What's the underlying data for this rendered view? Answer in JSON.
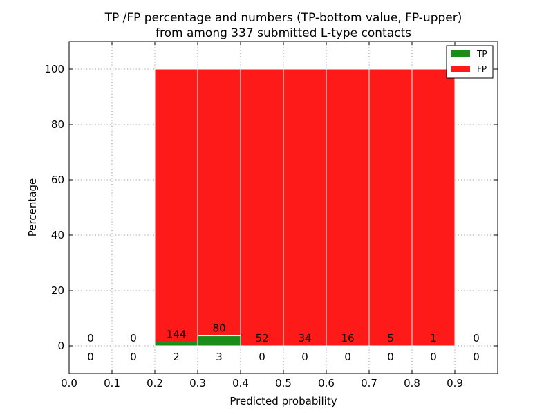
{
  "chart_data": {
    "type": "bar",
    "title": [
      "TP /FP percentage and numbers (TP-bottom value, FP-upper)",
      "from among 337 submitted L-type contacts"
    ],
    "xlabel": "Predicted probability",
    "ylabel": "Percentage",
    "xlim": [
      0.0,
      1.0
    ],
    "ylim": [
      -10,
      110
    ],
    "xticks": [
      "0.0",
      "0.1",
      "0.2",
      "0.3",
      "0.4",
      "0.5",
      "0.6",
      "0.7",
      "0.8",
      "0.9"
    ],
    "yticks": [
      "0",
      "20",
      "40",
      "60",
      "80",
      "100"
    ],
    "grid": true,
    "legend_position": "top-right",
    "bins": [
      {
        "x0": 0.0,
        "x1": 0.1,
        "tp_pct": 0,
        "fp_pct": 0,
        "tp_count": "0",
        "fp_count": "0"
      },
      {
        "x0": 0.1,
        "x1": 0.2,
        "tp_pct": 0,
        "fp_pct": 0,
        "tp_count": "0",
        "fp_count": "0"
      },
      {
        "x0": 0.2,
        "x1": 0.3,
        "tp_pct": 1.37,
        "fp_pct": 98.63,
        "tp_count": "2",
        "fp_count": "144"
      },
      {
        "x0": 0.3,
        "x1": 0.4,
        "tp_pct": 3.61,
        "fp_pct": 96.39,
        "tp_count": "3",
        "fp_count": "80"
      },
      {
        "x0": 0.4,
        "x1": 0.5,
        "tp_pct": 0,
        "fp_pct": 100,
        "tp_count": "0",
        "fp_count": "52"
      },
      {
        "x0": 0.5,
        "x1": 0.6,
        "tp_pct": 0,
        "fp_pct": 100,
        "tp_count": "0",
        "fp_count": "34"
      },
      {
        "x0": 0.6,
        "x1": 0.7,
        "tp_pct": 0,
        "fp_pct": 100,
        "tp_count": "0",
        "fp_count": "16"
      },
      {
        "x0": 0.7,
        "x1": 0.8,
        "tp_pct": 0,
        "fp_pct": 100,
        "tp_count": "0",
        "fp_count": "5"
      },
      {
        "x0": 0.8,
        "x1": 0.9,
        "tp_pct": 0,
        "fp_pct": 100,
        "tp_count": "0",
        "fp_count": "1"
      },
      {
        "x0": 0.9,
        "x1": 1.0,
        "tp_pct": 0,
        "fp_pct": 0,
        "tp_count": "0",
        "fp_count": "0"
      }
    ],
    "series": [
      {
        "name": "TP",
        "color": "#1a8c1a"
      },
      {
        "name": "FP",
        "color": "#ff1a1a"
      }
    ]
  }
}
